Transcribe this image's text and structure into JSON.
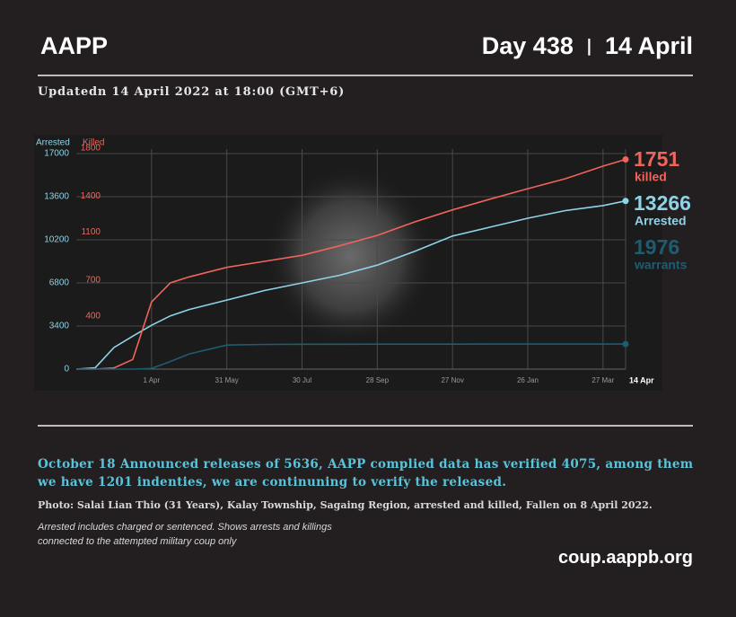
{
  "header": {
    "brand": "AAPP",
    "day": "Day 438",
    "date": "14 April"
  },
  "updated": "Updatedn 14 April 2022 at 18:00 (GMT+6)",
  "chart_data": {
    "type": "line",
    "y_label": "Arrested",
    "y2_label": "Killed",
    "x": [
      0,
      15,
      30,
      45,
      60,
      75,
      90,
      120,
      150,
      180,
      210,
      240,
      270,
      300,
      330,
      360,
      390,
      420,
      438
    ],
    "xlim": [
      0,
      438
    ],
    "xticks": [
      {
        "value": 60,
        "label": "1 Apr"
      },
      {
        "value": 120,
        "label": "31 May"
      },
      {
        "value": 180,
        "label": "30 Jul"
      },
      {
        "value": 240,
        "label": "28 Sep"
      },
      {
        "value": 300,
        "label": "27 Nov"
      },
      {
        "value": 360,
        "label": "26 Jan"
      },
      {
        "value": 420,
        "label": "27 Mar"
      },
      {
        "value": 438,
        "label": "14 Apr"
      }
    ],
    "ylim": [
      0,
      17000
    ],
    "yticks": [
      0,
      3400,
      6800,
      10200,
      13600,
      17000
    ],
    "y2lim": [
      0,
      1800
    ],
    "y2ticks": [
      400,
      700,
      1100,
      1400,
      1800
    ],
    "grid": true,
    "series": [
      {
        "name": "Arrested",
        "color": "#8fd3e8",
        "values": [
          0,
          100,
          1700,
          2600,
          3460,
          4200,
          4700,
          5450,
          6200,
          6800,
          7400,
          8200,
          9300,
          10500,
          11200,
          11900,
          12500,
          12900,
          13266
        ]
      },
      {
        "name": "killed",
        "color": "#f0645c",
        "axis": "y2",
        "values": [
          0,
          0,
          10,
          80,
          560,
          720,
          770,
          850,
          900,
          950,
          1030,
          1117,
          1230,
          1330,
          1420,
          1507,
          1590,
          1695,
          1751
        ]
      },
      {
        "name": "warrants",
        "color": "#1d5d72",
        "values": [
          0,
          0,
          0,
          0,
          50,
          600,
          1200,
          1900,
          1950,
          1960,
          1965,
          1968,
          1970,
          1972,
          1973,
          1974,
          1975,
          1975,
          1976
        ]
      }
    ]
  },
  "release_note": "October 18 Announced releases of 5636, AAPP complied data has verified 4075, among them we have 1201 indenties, we are continuning to verify the released.",
  "photo_caption": "Photo: Salai Lian Thio (31 Years), Kalay Township, Sagaing Region, arrested and killed, Fallen on 8 April 2022.",
  "footnote": [
    "Arrested includes charged or sentenced. Shows arrests and killings",
    "connected to the attempted military coup only"
  ],
  "url": "coup.aappb.org"
}
